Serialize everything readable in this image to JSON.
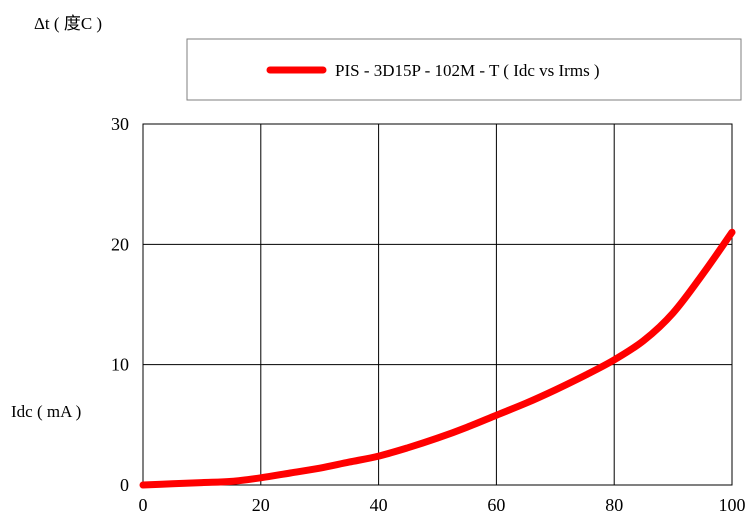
{
  "chart_data": {
    "type": "line",
    "title": "",
    "ylabel": "Δt ( 度C )",
    "xlabel": "Idc ( mA )",
    "xlim": [
      0,
      100
    ],
    "ylim": [
      0,
      30
    ],
    "xticks": [
      0,
      20,
      40,
      60,
      80,
      100
    ],
    "yticks": [
      0,
      10,
      20,
      30
    ],
    "xtick_labels": [
      "0",
      "20",
      "40",
      "60",
      "80",
      "100"
    ],
    "ytick_labels": [
      "0",
      "10",
      "20",
      "30"
    ],
    "grid": true,
    "legend_position": "top",
    "series": [
      {
        "name": "PIS - 3D15P - 102M - T ( Idc vs Irms )",
        "color": "#ff0000",
        "x": [
          0,
          5,
          10,
          15,
          20,
          25,
          30,
          35,
          40,
          45,
          50,
          55,
          60,
          65,
          70,
          75,
          80,
          85,
          90,
          95,
          100
        ],
        "y": [
          0,
          0.1,
          0.2,
          0.3,
          0.6,
          1.0,
          1.4,
          1.9,
          2.4,
          3.1,
          3.9,
          4.8,
          5.8,
          6.8,
          7.9,
          9.1,
          10.4,
          12.0,
          14.3,
          17.5,
          21.0
        ]
      }
    ]
  }
}
